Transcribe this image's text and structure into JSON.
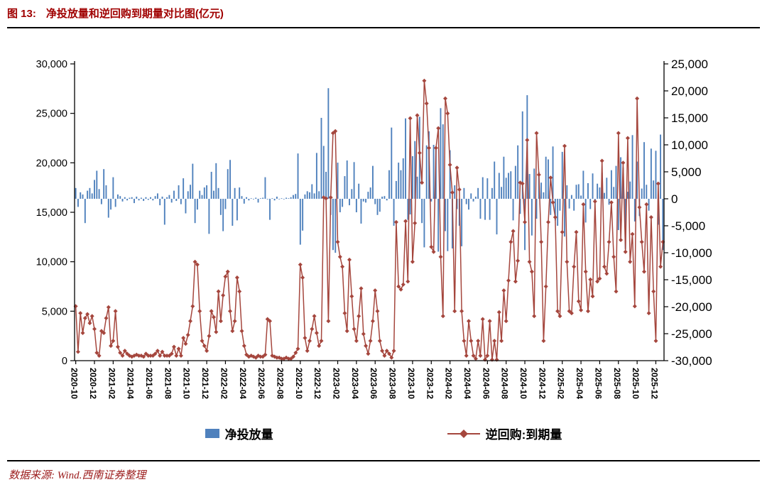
{
  "title": {
    "prefix": "图 13:",
    "text": "净投放量和逆回购到期量对比图(亿元)",
    "color": "#A00000"
  },
  "footer": {
    "text": "数据来源: Wind.西南证券整理"
  },
  "legend": {
    "items": [
      {
        "label": "净投放量",
        "type": "bar",
        "color": "#4F81BD"
      },
      {
        "label": "逆回购:到期量",
        "type": "line",
        "color": "#A5463D"
      }
    ]
  },
  "chart_data": {
    "type": "bar",
    "subtype": "combo-bar-line",
    "title": "净投放量和逆回购到期量对比图(亿元)",
    "x_label_rotation": 90,
    "grid": false,
    "legend_position": "bottom",
    "x_labels": [
      "2020-10",
      "2020-12",
      "2021-02",
      "2021-04",
      "2021-06",
      "2021-08",
      "2021-10",
      "2021-12",
      "2022-02",
      "2022-04",
      "2022-06",
      "2022-08",
      "2022-10",
      "2022-12",
      "2023-02",
      "2023-04",
      "2023-06",
      "2023-08",
      "2023-10",
      "2023-12",
      "2024-02",
      "2024-04",
      "2024-06",
      "2024-08",
      "2024-10",
      "2024-12",
      "2025-02",
      "2025-04",
      "2025-06",
      "2025-08",
      "2025-10",
      "2025-12"
    ],
    "points_per_label_interval": 8,
    "left_axis": {
      "min": 0,
      "max": 30000,
      "step": 5000,
      "ticks": [
        "0",
        "5,000",
        "10,000",
        "15,000",
        "20,000",
        "25,000",
        "30,000"
      ]
    },
    "right_axis": {
      "min": -30000,
      "max": 25000,
      "step": 5000,
      "ticks": [
        "-30,000",
        "-25,000",
        "-20,000",
        "-15,000",
        "-10,000",
        "-5,000",
        "0",
        "5,000",
        "10,000",
        "15,000",
        "20,000",
        "25,000"
      ]
    },
    "series": [
      {
        "name": "净投放量",
        "type": "bar",
        "axis": "right",
        "color": "#4F81BD",
        "values": [
          2000,
          -1500,
          1200,
          800,
          -4500,
          1500,
          2000,
          1000,
          3500,
          5200,
          1800,
          -1000,
          5500,
          2500,
          -3500,
          -2000,
          4000,
          -1500,
          800,
          500,
          -500,
          300,
          -300,
          200,
          300,
          -800,
          400,
          -300,
          200,
          -400,
          300,
          -200,
          300,
          -300,
          500,
          1000,
          -1200,
          400,
          -4800,
          300,
          700,
          -700,
          1500,
          -400,
          2500,
          -1000,
          3800,
          -2700,
          1400,
          2600,
          6500,
          -4500,
          -2000,
          1500,
          700,
          2100,
          2500,
          -6500,
          5000,
          1500,
          6600,
          2000,
          -3000,
          -6000,
          -1900,
          5500,
          7200,
          -5000,
          2000,
          -4000,
          2100,
          500,
          -900,
          300,
          -300,
          100,
          -100,
          200,
          -700,
          100,
          200,
          4000,
          -100,
          -3900,
          100,
          -300,
          400,
          -100,
          100,
          -100,
          200,
          100,
          300,
          700,
          900,
          8400,
          -8500,
          -5900,
          800,
          1400,
          1200,
          2700,
          1000,
          8500,
          1400,
          15000,
          9800,
          5000,
          20500,
          -3000,
          -9500,
          -10000,
          6700,
          -2500,
          -1500,
          4200,
          7100,
          -1200,
          1800,
          6800,
          -2500,
          2800,
          -4600,
          -500,
          -700,
          1300,
          2100,
          6100,
          -1000,
          -3000,
          -2400,
          400,
          500,
          -300,
          5300,
          13200,
          -5000,
          3300,
          6700,
          5300,
          7500,
          14900,
          -3900,
          -2900,
          7900,
          10700,
          4100,
          15200,
          -4500,
          -9000,
          9900,
          12500,
          -500,
          10000,
          9700,
          -9800,
          16800,
          13800,
          -6000,
          -9700,
          9000,
          -9200,
          2500,
          -1900,
          -5000,
          -8800,
          2000,
          -1000,
          -2000,
          1000,
          -500,
          400,
          2000,
          -3700,
          4000,
          -3900,
          3800,
          -3900,
          2000,
          6900,
          -6600,
          4800,
          2200,
          7800,
          3900,
          4800,
          5100,
          -4000,
          6100,
          9900,
          -2800,
          16200,
          -9500,
          19200,
          4600,
          -6800,
          5600,
          -3700,
          5000,
          3000,
          1200,
          7800,
          7300,
          -3000,
          9700,
          -4000,
          -5000,
          -2200,
          8700,
          -7000,
          2500,
          -1800,
          700,
          -2200,
          2600,
          2700,
          600,
          5200,
          -4400,
          2900,
          -1900,
          4700,
          -800,
          2800,
          2100,
          4800,
          1100,
          3900,
          -1100,
          5300,
          2200,
          6100,
          -5800,
          7700,
          5800,
          -9300,
          1300,
          3200,
          11800,
          -4200,
          6900,
          -3200,
          1900,
          10500,
          2600,
          -2200,
          9300,
          3400,
          8900,
          -4800,
          11900,
          -9500
        ]
      },
      {
        "name": "逆回购:到期量",
        "type": "line",
        "axis": "left",
        "color": "#A5463D",
        "values": [
          5500,
          900,
          4800,
          2800,
          4300,
          4700,
          3800,
          4500,
          3200,
          800,
          500,
          3000,
          2800,
          4300,
          5400,
          1500,
          2000,
          5000,
          1400,
          800,
          500,
          1000,
          700,
          500,
          400,
          500,
          600,
          500,
          500,
          400,
          700,
          500,
          500,
          500,
          700,
          1000,
          500,
          900,
          500,
          500,
          500,
          700,
          1400,
          500,
          1200,
          500,
          2300,
          1700,
          2600,
          4000,
          5500,
          10000,
          9700,
          5000,
          2000,
          1500,
          1000,
          2500,
          5000,
          4400,
          2900,
          7000,
          4000,
          6600,
          8500,
          9000,
          5000,
          3000,
          4000,
          8400,
          7000,
          3000,
          1500,
          600,
          400,
          500,
          400,
          300,
          500,
          400,
          400,
          600,
          4200,
          4000,
          500,
          400,
          300,
          300,
          200,
          200,
          300,
          200,
          200,
          400,
          800,
          1200,
          9700,
          8400,
          2300,
          1000,
          2000,
          3200,
          4500,
          2800,
          1500,
          2000,
          16500,
          16400,
          4000,
          16500,
          23000,
          23200,
          12000,
          10500,
          9500,
          4800,
          3000,
          10200,
          6500,
          3200,
          2000,
          4500,
          7300,
          2700,
          1500,
          700,
          2000,
          4000,
          7100,
          5000,
          2000,
          1000,
          500,
          1000,
          700,
          300,
          1000,
          14000,
          7500,
          7200,
          7700,
          14100,
          8000,
          24500,
          10000,
          13900,
          24800,
          21000,
          18000,
          28300,
          26000,
          21500,
          11500,
          11000,
          21500,
          23500,
          10500,
          4500,
          26500,
          25000,
          19800,
          17000,
          5000,
          19500,
          17300,
          5000,
          2000,
          500,
          4000,
          2000,
          500,
          200,
          2000,
          500,
          4200,
          100,
          500,
          4000,
          100,
          2000,
          100,
          4900,
          2000,
          7100,
          4000,
          8100,
          12000,
          13100,
          8000,
          10100,
          18000,
          17900,
          14000,
          22300,
          10000,
          9000,
          4500,
          23000,
          18800,
          12000,
          2000,
          7500,
          14000,
          18500,
          16000,
          14500,
          5000,
          4500,
          13000,
          21700,
          10000,
          5000,
          4800,
          9500,
          13000,
          6000,
          5100,
          15800,
          9000,
          5000,
          8200,
          6500,
          16100,
          8000,
          8300,
          20200,
          9500,
          8800,
          12000,
          16000,
          10500,
          7000,
          23000,
          12200,
          20000,
          11000,
          22500,
          10000,
          12800,
          5500,
          26500,
          15500,
          12000,
          9000,
          15800,
          4800,
          14500,
          7000,
          2000,
          17900,
          9500,
          12000
        ]
      }
    ]
  }
}
